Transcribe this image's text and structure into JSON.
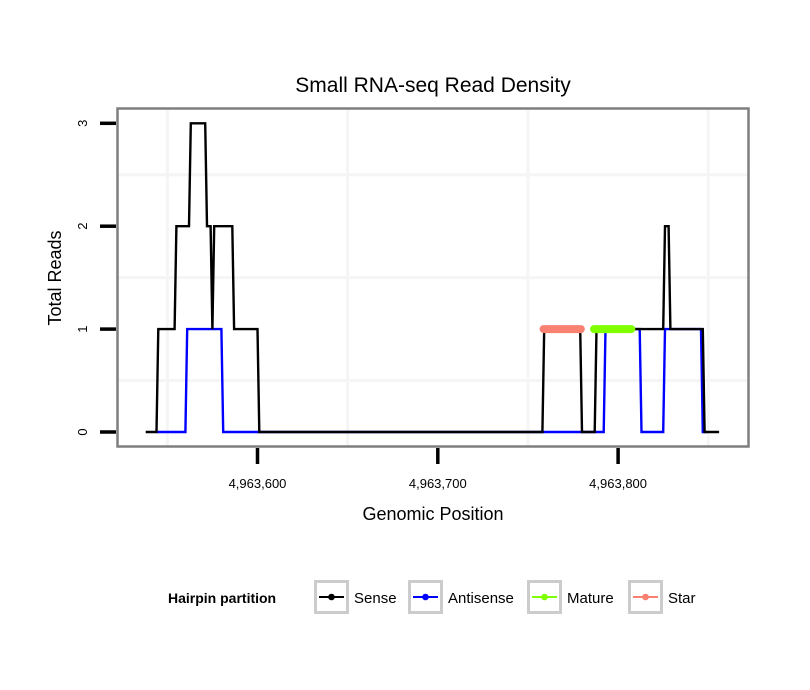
{
  "chart_data": {
    "type": "line",
    "title": "Small RNA-seq Read Density",
    "xlabel": "Genomic Position",
    "ylabel": "Total Reads",
    "xlim": [
      4963528,
      4963875
    ],
    "ylim": [
      -0.15,
      3.15
    ],
    "x_ticks": [
      4963600,
      4963700,
      4963800
    ],
    "x_tick_labels": [
      "4,963,600",
      "4,963,700",
      "4,963,800"
    ],
    "y_ticks": [
      0,
      1,
      2,
      3
    ],
    "y_tick_labels": [
      "0",
      "1",
      "2",
      "3"
    ],
    "x_minor_grid": [
      4963550,
      4963650,
      4963750,
      4963850
    ],
    "y_minor_grid": [
      0.5,
      1.5,
      2.5
    ],
    "grid": true,
    "legend": {
      "title": "Hairpin partition",
      "position": "bottom",
      "entries": [
        {
          "label": "Sense",
          "color": "#000000"
        },
        {
          "label": "Antisense",
          "color": "#0000ff"
        },
        {
          "label": "Mature",
          "color": "#7fff00"
        },
        {
          "label": "Star",
          "color": "#fa8072"
        }
      ]
    },
    "series": [
      {
        "name": "Sense",
        "color": "#000000",
        "step_points": [
          [
            4963538,
            0
          ],
          [
            4963544,
            0
          ],
          [
            4963545,
            1
          ],
          [
            4963554,
            1
          ],
          [
            4963555,
            2
          ],
          [
            4963562,
            2
          ],
          [
            4963563,
            3
          ],
          [
            4963571,
            3
          ],
          [
            4963572,
            2
          ],
          [
            4963574,
            2
          ],
          [
            4963575,
            1
          ],
          [
            4963576,
            2
          ],
          [
            4963586,
            2
          ],
          [
            4963587,
            1
          ],
          [
            4963600,
            1
          ],
          [
            4963601,
            0
          ],
          [
            4963758,
            0
          ],
          [
            4963759,
            1
          ],
          [
            4963779,
            1
          ],
          [
            4963780,
            0
          ],
          [
            4963787,
            0
          ],
          [
            4963788,
            1
          ],
          [
            4963825,
            1
          ],
          [
            4963826,
            2
          ],
          [
            4963828,
            2
          ],
          [
            4963829,
            1
          ],
          [
            4963847,
            1
          ],
          [
            4963848,
            0
          ],
          [
            4963856,
            0
          ]
        ]
      },
      {
        "name": "Antisense",
        "color": "#0000ff",
        "step_points": [
          [
            4963544,
            0
          ],
          [
            4963560,
            0
          ],
          [
            4963561,
            1
          ],
          [
            4963580,
            1
          ],
          [
            4963581,
            0
          ],
          [
            4963600,
            0
          ],
          [
            4963758,
            0
          ],
          [
            4963792,
            0
          ],
          [
            4963793,
            1
          ],
          [
            4963812,
            1
          ],
          [
            4963813,
            0
          ],
          [
            4963825,
            0
          ],
          [
            4963826,
            1
          ],
          [
            4963846,
            1
          ],
          [
            4963847,
            0
          ],
          [
            4963849,
            0
          ]
        ]
      },
      {
        "name": "Mature",
        "color": "#7fff00",
        "segments": [
          [
            4963785,
            4963809,
            1
          ]
        ]
      },
      {
        "name": "Star",
        "color": "#fa8072",
        "segments": [
          [
            4963757,
            4963781,
            1
          ]
        ]
      }
    ]
  }
}
